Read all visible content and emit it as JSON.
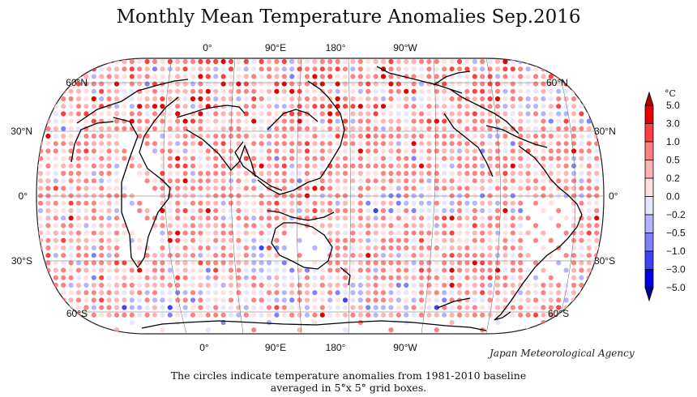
{
  "title": "Monthly Mean Temperature Anomalies Sep.2016",
  "lon_labels": [
    "0°",
    "90°E",
    "180°",
    "90°W"
  ],
  "lat_labels": [
    "60°N",
    "30°N",
    "0°",
    "30°S",
    "60°S"
  ],
  "colorbar": {
    "unit": "°C",
    "ticks": [
      "5.0",
      "3.0",
      "1.0",
      "0.5",
      "0.2",
      "0.0",
      "−0.2",
      "−0.5",
      "−1.0",
      "−3.0",
      "−5.0"
    ],
    "colors": [
      "#e60000",
      "#ff4040",
      "#ff8080",
      "#ffb3b3",
      "#ffe0e0",
      "#e6e6ff",
      "#b3b3ff",
      "#8080ff",
      "#4040ff",
      "#0000e6"
    ]
  },
  "agency": "Japan Meteorological Agency",
  "note_line1": "The circles indicate temperature anomalies from 1981-2010 baseline",
  "note_line2": "averaged in 5°x 5° grid boxes."
}
